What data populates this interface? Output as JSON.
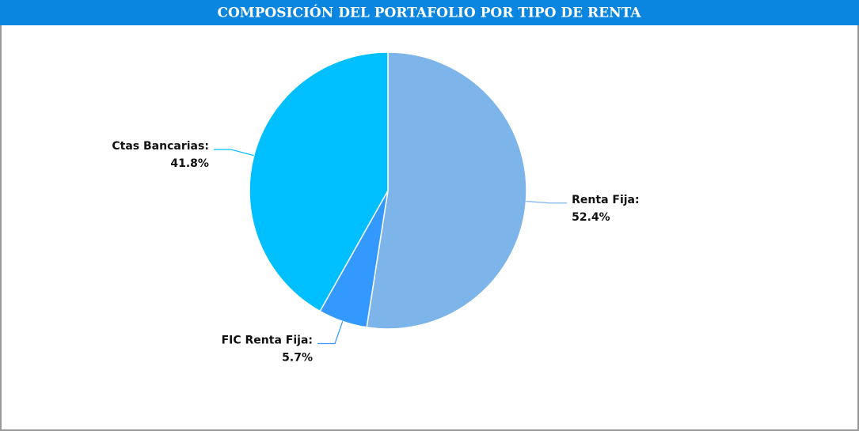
{
  "chart_data": {
    "type": "pie",
    "title": "COMPOSICIÓN DEL PORTAFOLIO POR TIPO DE RENTA",
    "categories": [
      "Renta Fija:",
      "FIC Renta Fija:",
      "Ctas Bancarias:"
    ],
    "values": [
      52.4,
      5.7,
      41.8
    ],
    "value_labels": [
      "52.4%",
      "5.7%",
      "41.8%"
    ],
    "colors": [
      "#7db4ea",
      "#3399ff",
      "#00bfff"
    ]
  }
}
